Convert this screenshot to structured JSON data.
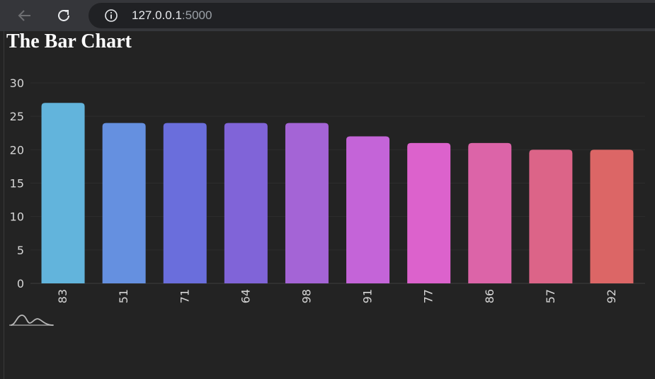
{
  "browser": {
    "url_host": "127.0.0.1",
    "url_port": ":5000"
  },
  "page": {
    "title": "The Bar Chart"
  },
  "chart_data": {
    "type": "bar",
    "title": "The Bar Chart",
    "xlabel": "",
    "ylabel": "",
    "categories": [
      "83",
      "51",
      "71",
      "64",
      "98",
      "91",
      "77",
      "86",
      "57",
      "92"
    ],
    "values": [
      27,
      24,
      24,
      24,
      24,
      22,
      21,
      21,
      20,
      20
    ],
    "ylim": [
      0,
      30
    ],
    "yticks": [
      0,
      5,
      10,
      15,
      20,
      25,
      30
    ],
    "grid": true,
    "colors": [
      "#62b4dc",
      "#6590e0",
      "#6a6edc",
      "#8064d8",
      "#a464d6",
      "#c464d8",
      "#dc62cc",
      "#dc64a8",
      "#dc6488",
      "#dc6666"
    ]
  }
}
